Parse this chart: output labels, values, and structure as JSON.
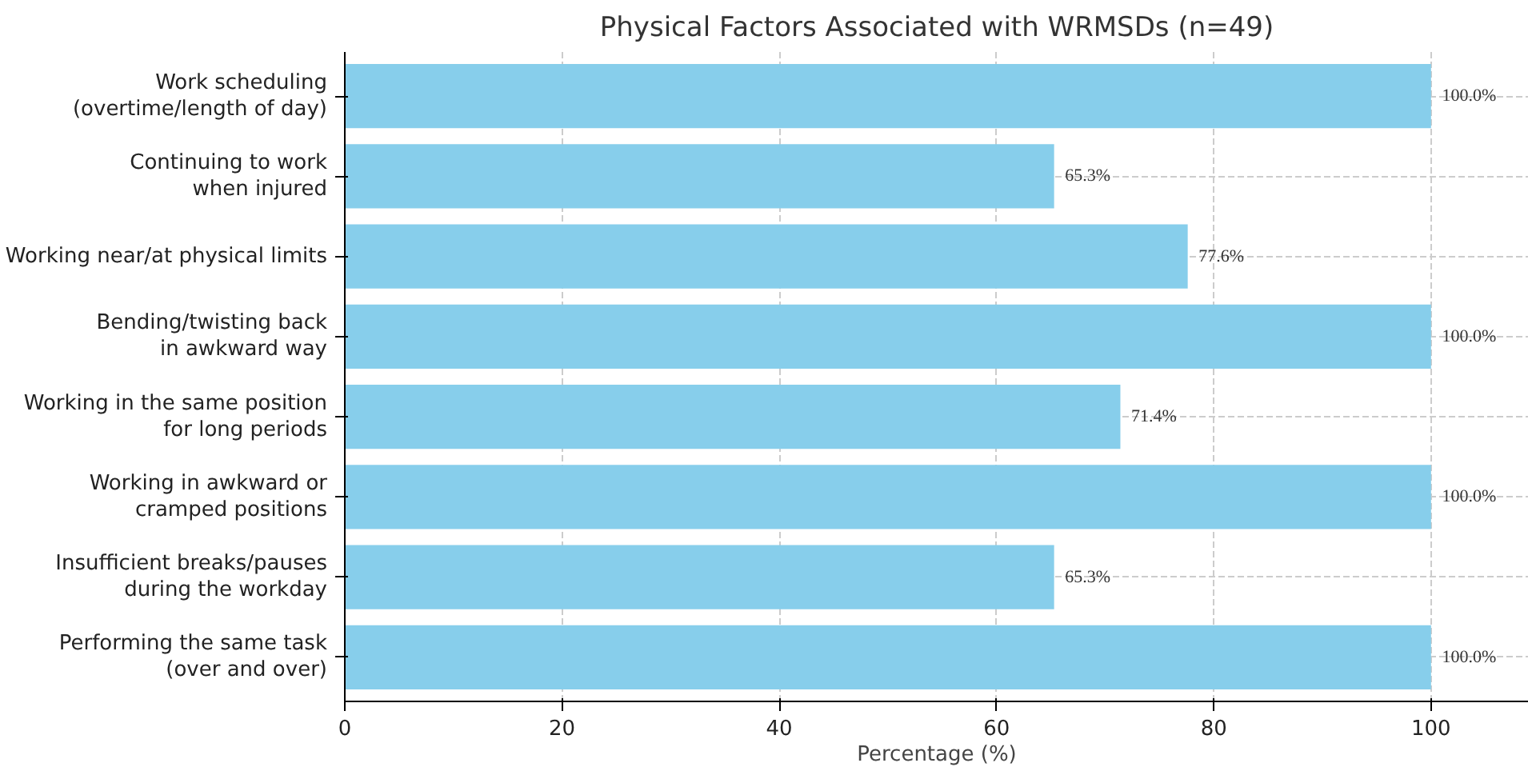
{
  "chart_data": {
    "type": "bar",
    "orientation": "horizontal",
    "title": "Physical Factors Associated with WRMSDs (n=49)",
    "xlabel": "Percentage (%)",
    "categories": [
      "Work scheduling\n(overtime/length of day)",
      "Continuing to work\nwhen injured",
      "Working near/at physical limits",
      "Bending/twisting back\nin awkward way",
      "Working in the same position\nfor long periods",
      "Working in awkward or\ncramped positions",
      "Insufficient breaks/pauses\nduring the workday",
      "Performing the same task\n(over and over)"
    ],
    "values": [
      100.0,
      65.3,
      77.6,
      100.0,
      71.4,
      100.0,
      65.3,
      100.0
    ],
    "value_labels": [
      "100.0%",
      "65.3%",
      "77.6%",
      "100.0%",
      "71.4%",
      "100.0%",
      "65.3%",
      "100.0%"
    ],
    "color": "#87ceeb",
    "xlim": [
      0,
      109
    ],
    "xticks": [
      0,
      20,
      40,
      60,
      80,
      100
    ],
    "grid": true
  }
}
